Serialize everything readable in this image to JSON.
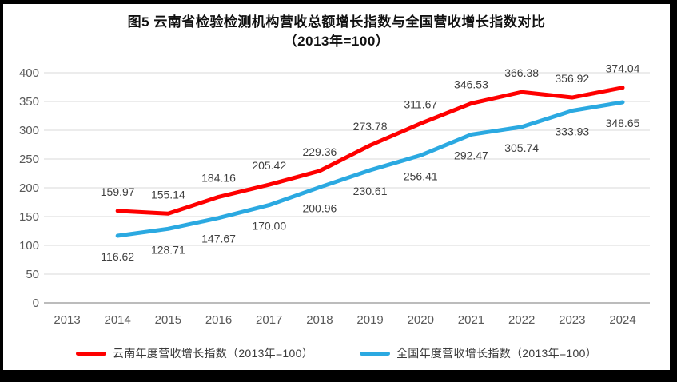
{
  "title": {
    "line1": "图5  云南省检验检测机构营收总额增长指数与全国营收增长指数对比",
    "line2": "（2013年=100）"
  },
  "chart_data": {
    "type": "line",
    "title": "图5 云南省检验检测机构营收总额增长指数与全国营收增长指数对比（2013年=100）",
    "x": [
      2013,
      2014,
      2015,
      2016,
      2017,
      2018,
      2019,
      2020,
      2021,
      2022,
      2023,
      2024
    ],
    "series": [
      {
        "name": "云南年度营收增长指数（2013年=100）",
        "color": "#FE0000",
        "start_year": 2014,
        "label_position": "above",
        "values": [
          159.97,
          155.14,
          184.16,
          205.42,
          229.36,
          273.78,
          311.67,
          346.53,
          366.38,
          356.92,
          374.04
        ]
      },
      {
        "name": "全国年度营收增长指数（2013年=100）",
        "color": "#2BA9E1",
        "start_year": 2014,
        "label_position": "below",
        "values": [
          116.62,
          128.71,
          147.67,
          170.0,
          200.96,
          230.61,
          256.41,
          292.47,
          305.74,
          333.93,
          348.65
        ]
      }
    ],
    "ylim": [
      0,
      400
    ],
    "ytick_step": 50,
    "label_decimals": 2,
    "grid": "horizontal-only",
    "legend_position": "bottom",
    "axis_color": "#A6A6A6",
    "gridline_color": "#D9D9D9"
  }
}
